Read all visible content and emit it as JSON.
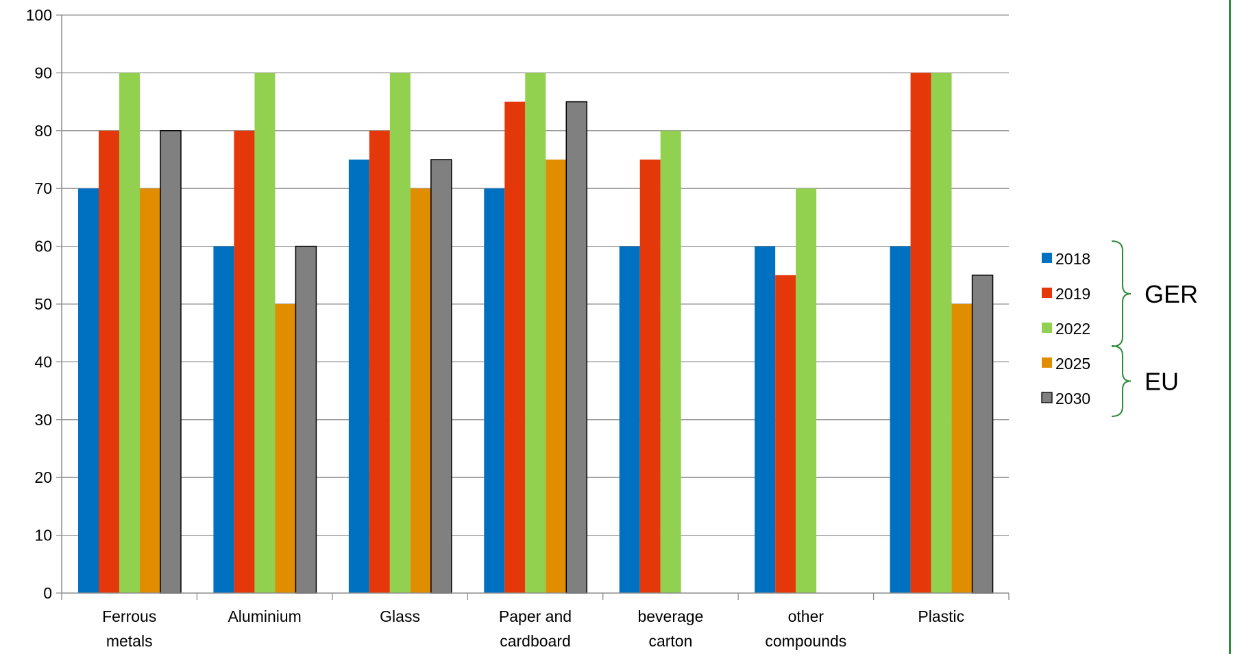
{
  "chart_data": {
    "type": "bar",
    "categories": [
      [
        "Ferrous",
        "metals"
      ],
      [
        "Aluminium"
      ],
      [
        "Glass"
      ],
      [
        "Paper and",
        "cardboard"
      ],
      [
        "beverage",
        "carton"
      ],
      [
        "other",
        "compounds"
      ],
      [
        "Plastic"
      ]
    ],
    "series": [
      {
        "name": "2018",
        "color": "#0070c0",
        "values": [
          70,
          60,
          75,
          70,
          60,
          60,
          60
        ]
      },
      {
        "name": "2019",
        "color": "#e5380a",
        "values": [
          80,
          80,
          80,
          85,
          75,
          55,
          90
        ]
      },
      {
        "name": "2022",
        "color": "#92d050",
        "values": [
          90,
          90,
          90,
          90,
          80,
          70,
          90
        ]
      },
      {
        "name": "2025",
        "color": "#e08e00",
        "values": [
          70,
          50,
          70,
          75,
          null,
          null,
          50
        ]
      },
      {
        "name": "2030",
        "color": "#808080",
        "values": [
          80,
          60,
          75,
          85,
          null,
          null,
          55
        ]
      }
    ],
    "ylim": [
      0,
      100
    ],
    "yticks": [
      0,
      10,
      20,
      30,
      40,
      50,
      60,
      70,
      80,
      90,
      100
    ],
    "grid": true,
    "legend": {
      "placement": "right",
      "groups": [
        {
          "label": "GER",
          "series": [
            "2018",
            "2019",
            "2022"
          ]
        },
        {
          "label": "EU",
          "series": [
            "2025",
            "2030"
          ]
        }
      ]
    },
    "bracket_color": "#2e8b3a"
  }
}
